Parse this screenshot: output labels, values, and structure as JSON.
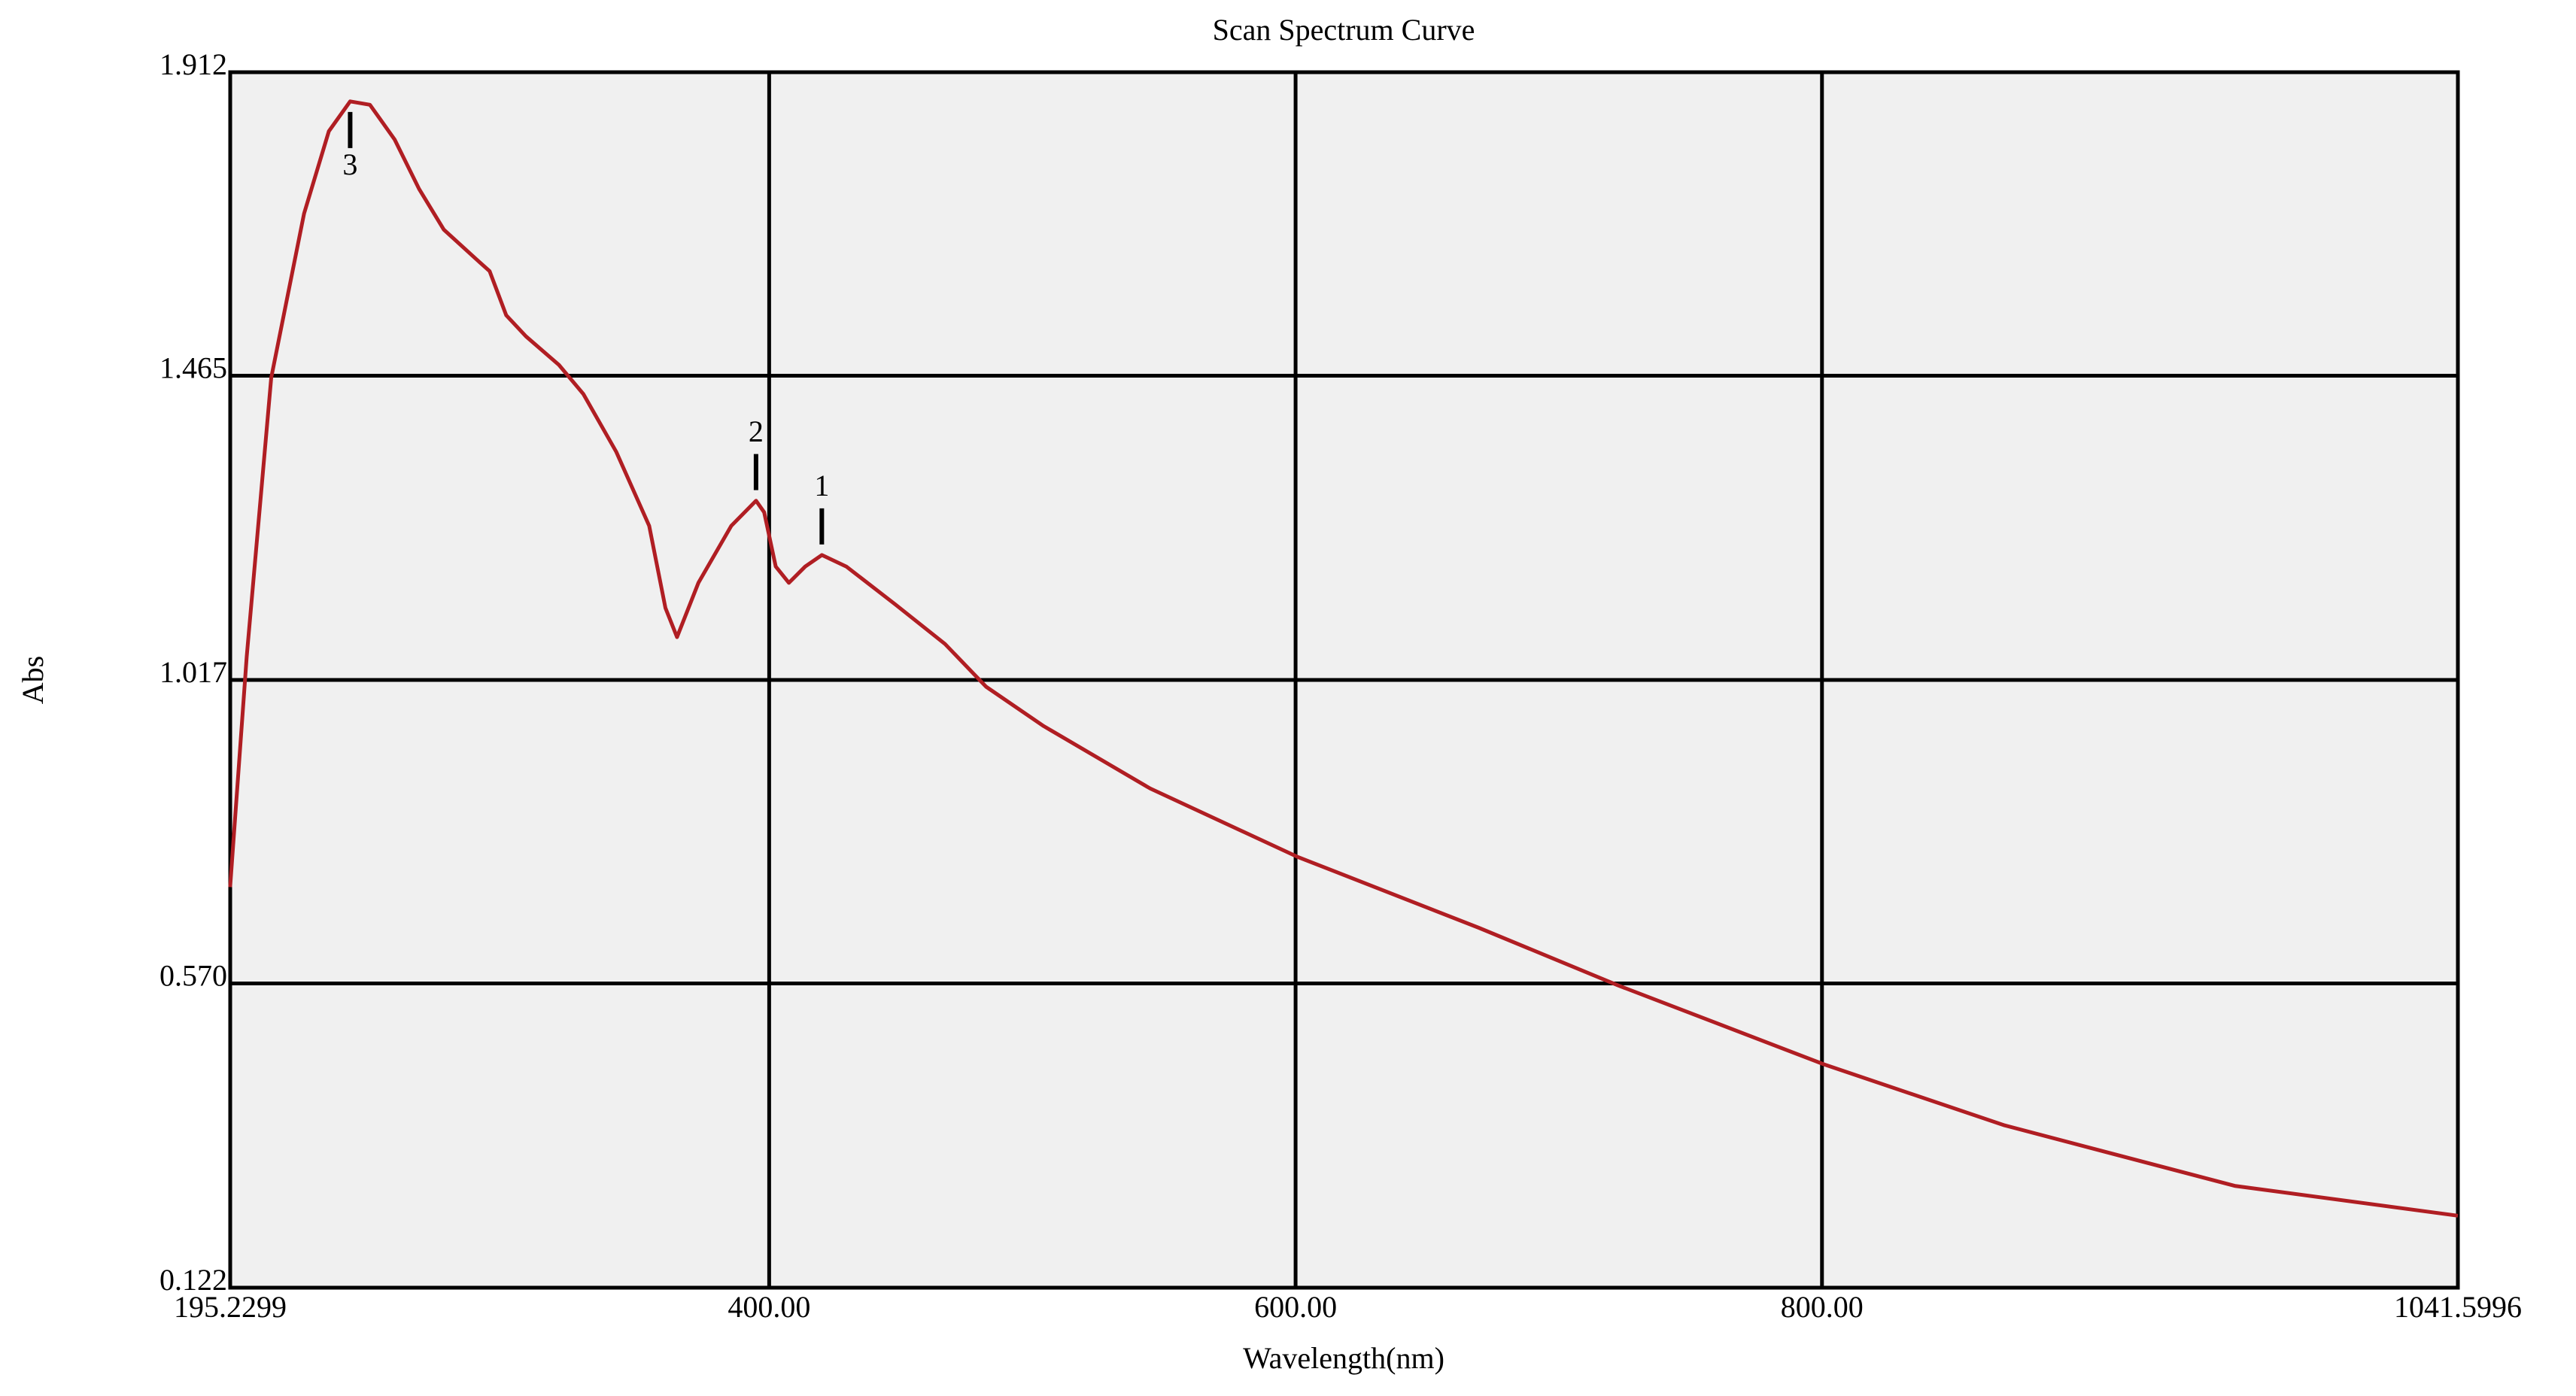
{
  "chart_data": {
    "type": "line",
    "title": "Scan Spectrum Curve",
    "x_label": "Wavelength(nm)",
    "y_label": "Abs",
    "xlim": [
      195.2299,
      1041.5996
    ],
    "xticks": [
      195.2299,
      {
        "value": 400,
        "label": "400.00"
      },
      {
        "value": 600,
        "label": "600.00"
      },
      {
        "value": 800,
        "label": "800.00"
      },
      1041.5996
    ],
    "ylim": [
      0.122,
      1.912
    ],
    "yticks": [
      0.122,
      {
        "value": 0.57,
        "label": "0.570"
      },
      1.017,
      1.465,
      1.912
    ],
    "grid": true,
    "series": [
      {
        "color": "#b01e23",
        "x": [
          195.2,
          201.5,
          210.8,
          223.3,
          232.7,
          240.8,
          248.3,
          257.7,
          267.0,
          276.4,
          288.9,
          293.8,
          300.1,
          307.6,
          320.1,
          329.4,
          341.9,
          354.4,
          360.6,
          365.0,
          373.1,
          385.6,
          395.0,
          398.1,
          402.5,
          407.5,
          413.7,
          420.0,
          429.3,
          448.0,
          466.8,
          482.4,
          504.3,
          544.8,
          601.0,
          669.6,
          722.7,
          800.7,
          869.4,
          956.8,
          1041.6
        ],
        "values": [
          0.712,
          1.051,
          1.462,
          1.704,
          1.825,
          1.869,
          1.864,
          1.813,
          1.74,
          1.68,
          1.636,
          1.619,
          1.554,
          1.523,
          1.481,
          1.438,
          1.353,
          1.244,
          1.123,
          1.08,
          1.16,
          1.244,
          1.281,
          1.264,
          1.184,
          1.16,
          1.184,
          1.201,
          1.184,
          1.128,
          1.07,
          1.007,
          0.949,
          0.857,
          0.756,
          0.652,
          0.567,
          0.451,
          0.361,
          0.272,
          0.228
        ]
      }
    ],
    "peaks": [
      {
        "label": "1",
        "x": 420.0,
        "y": 1.201
      },
      {
        "label": "2",
        "x": 395.0,
        "y": 1.281
      },
      {
        "label": "3",
        "x": 240.8,
        "y": 1.869
      }
    ]
  }
}
